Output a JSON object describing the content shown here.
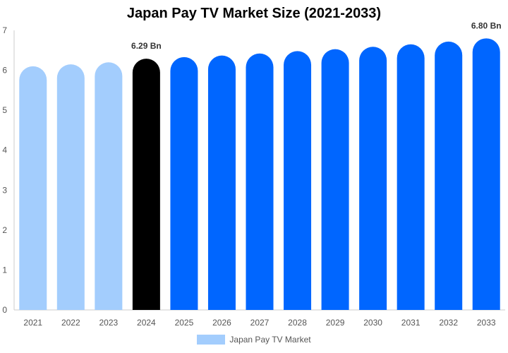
{
  "chart_data": {
    "type": "bar",
    "title": "Japan Pay TV Market Size (2021-2033)",
    "categories": [
      "2021",
      "2022",
      "2023",
      "2024",
      "2025",
      "2026",
      "2027",
      "2028",
      "2029",
      "2030",
      "2031",
      "2032",
      "2033"
    ],
    "series": [
      {
        "name": "Japan Pay TV Market",
        "values": [
          6.1,
          6.15,
          6.2,
          6.29,
          6.33,
          6.37,
          6.42,
          6.48,
          6.53,
          6.59,
          6.65,
          6.72,
          6.8
        ]
      }
    ],
    "bar_colors": [
      "#a3cdfd",
      "#a3cdfd",
      "#a3cdfd",
      "#000000",
      "#0066ff",
      "#0066ff",
      "#0066ff",
      "#0066ff",
      "#0066ff",
      "#0066ff",
      "#0066ff",
      "#0066ff",
      "#0066ff"
    ],
    "data_labels": [
      {
        "category": "2024",
        "text": "6.29 Bn"
      },
      {
        "category": "2033",
        "text": "6.80 Bn"
      }
    ],
    "ylim": [
      0,
      7
    ],
    "yticks": [
      "0",
      "1",
      "2",
      "3",
      "4",
      "5",
      "6",
      "7"
    ],
    "xlabel": "",
    "ylabel": "",
    "grid": false,
    "legend_position": "bottom",
    "legend_color": "#a3cdfd"
  }
}
